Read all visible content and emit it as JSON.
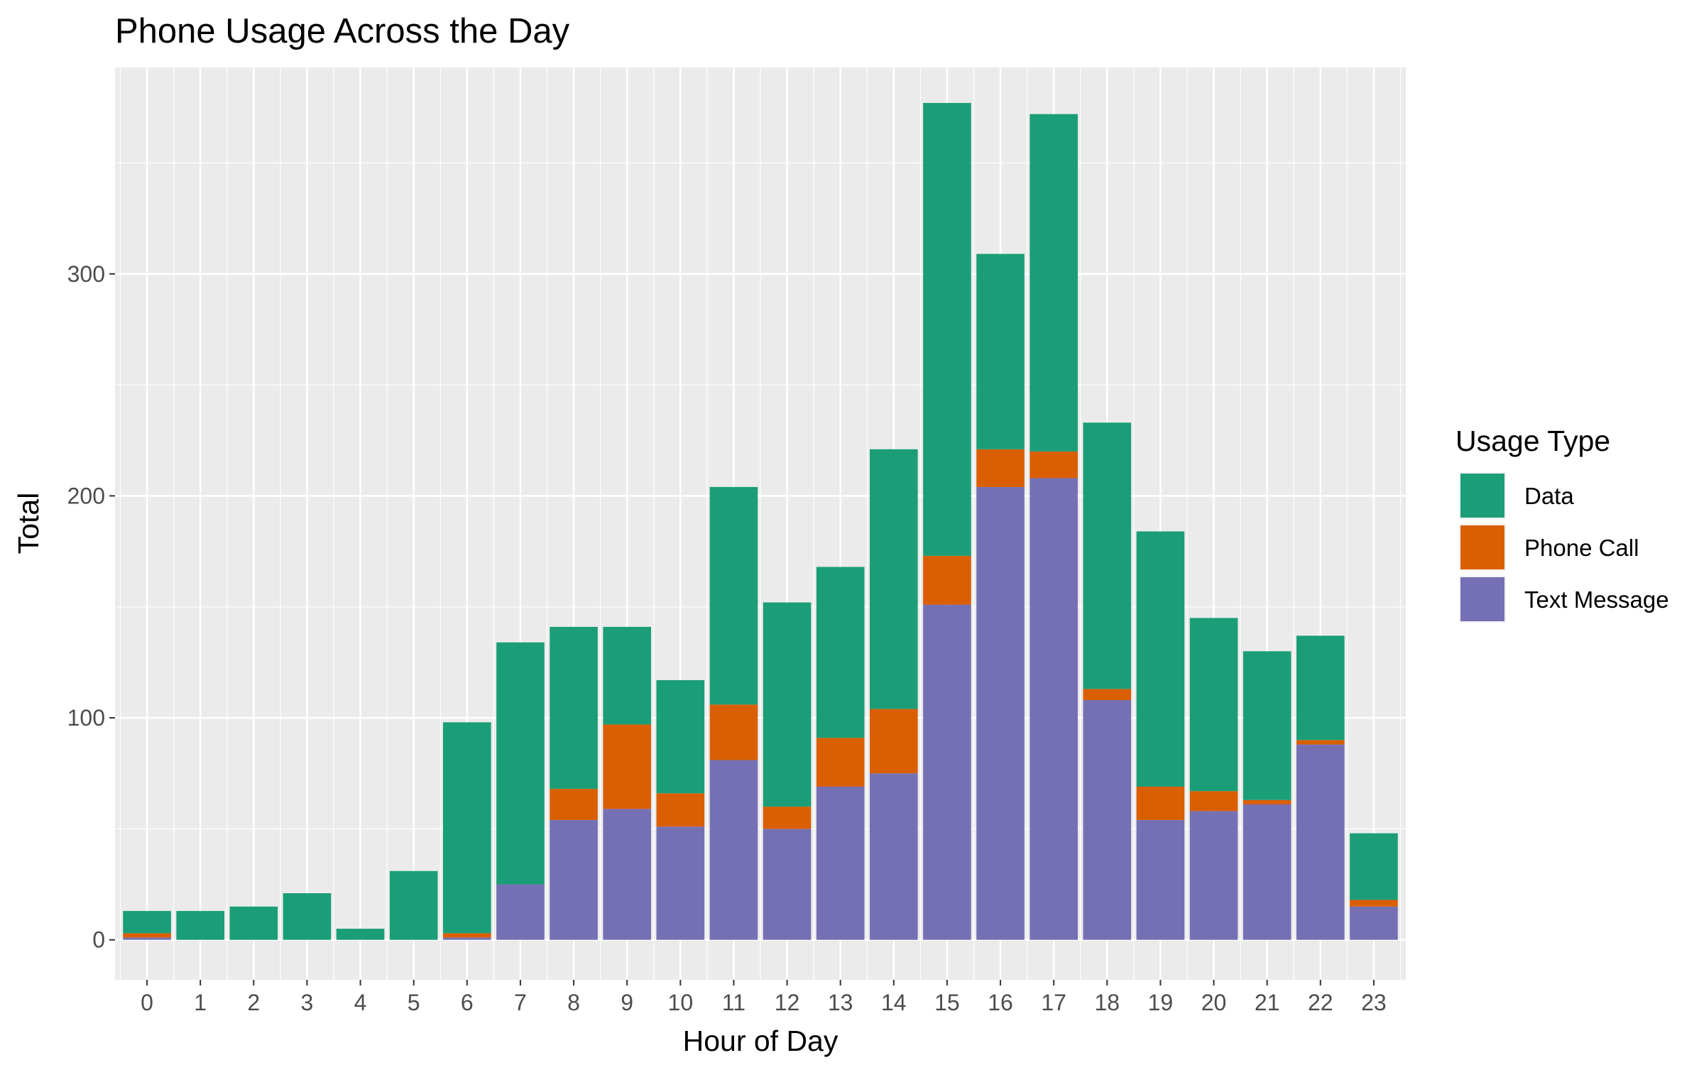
{
  "chart_data": {
    "type": "bar",
    "stacked": true,
    "title": "Phone Usage Across the Day",
    "xlabel": "Hour of Day",
    "ylabel": "Total",
    "categories": [
      "0",
      "1",
      "2",
      "3",
      "4",
      "5",
      "6",
      "7",
      "8",
      "9",
      "10",
      "11",
      "12",
      "13",
      "14",
      "15",
      "16",
      "17",
      "18",
      "19",
      "20",
      "21",
      "22",
      "23"
    ],
    "ylim": [
      -18,
      393
    ],
    "y_ticks": [
      0,
      100,
      200,
      300
    ],
    "grid": true,
    "legend_title": "Usage Type",
    "legend_position": "right",
    "series": [
      {
        "name": "Text Message",
        "color": "#7570B3",
        "values": [
          1,
          0,
          0,
          0,
          0,
          0,
          1,
          25,
          54,
          59,
          51,
          81,
          50,
          69,
          75,
          151,
          204,
          208,
          108,
          54,
          58,
          61,
          88,
          15
        ]
      },
      {
        "name": "Phone Call",
        "color": "#D95F02",
        "values": [
          2,
          0,
          0,
          0,
          0,
          0,
          2,
          0,
          14,
          38,
          15,
          25,
          10,
          22,
          29,
          22,
          17,
          12,
          5,
          15,
          9,
          2,
          2,
          3
        ]
      },
      {
        "name": "Data",
        "color": "#1B9E77",
        "values": [
          10,
          13,
          15,
          21,
          5,
          31,
          95,
          109,
          73,
          44,
          51,
          98,
          92,
          77,
          117,
          204,
          88,
          152,
          120,
          115,
          78,
          67,
          47,
          30
        ]
      }
    ],
    "legend_order": [
      "Data",
      "Phone Call",
      "Text Message"
    ]
  }
}
